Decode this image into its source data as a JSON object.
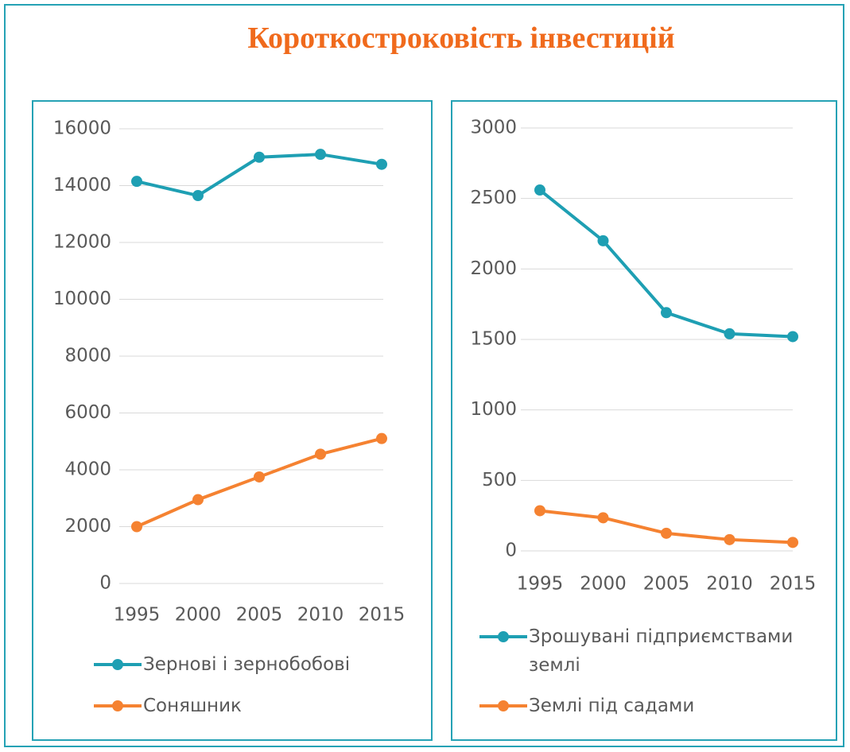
{
  "title": "Короткостроковість інвестицій",
  "chart_data": [
    {
      "type": "line",
      "categories": [
        "1995",
        "2000",
        "2005",
        "2010",
        "2015"
      ],
      "series": [
        {
          "name": "Зернові і зернобобові",
          "color": "#1e9fb3",
          "values": [
            14150,
            13650,
            15000,
            15100,
            14750
          ]
        },
        {
          "name": "Соняшник",
          "color": "#f58231",
          "values": [
            2000,
            2950,
            3750,
            4550,
            5100
          ]
        }
      ],
      "ylim": [
        0,
        16000
      ],
      "yticks": [
        0,
        2000,
        4000,
        6000,
        8000,
        10000,
        12000,
        14000,
        16000
      ],
      "grid": true,
      "legend": "bottom"
    },
    {
      "type": "line",
      "categories": [
        "1995",
        "2000",
        "2005",
        "2010",
        "2015"
      ],
      "series": [
        {
          "name": "Зрошувані підприємствами землі",
          "color": "#1e9fb3",
          "values": [
            2560,
            2200,
            1690,
            1540,
            1520
          ]
        },
        {
          "name": "Землі під садами",
          "color": "#f58231",
          "values": [
            285,
            235,
            125,
            80,
            60
          ]
        }
      ],
      "ylim": [
        0,
        3000
      ],
      "yticks": [
        0,
        500,
        1000,
        1500,
        2000,
        2500,
        3000
      ],
      "grid": true,
      "legend": "bottom"
    }
  ]
}
